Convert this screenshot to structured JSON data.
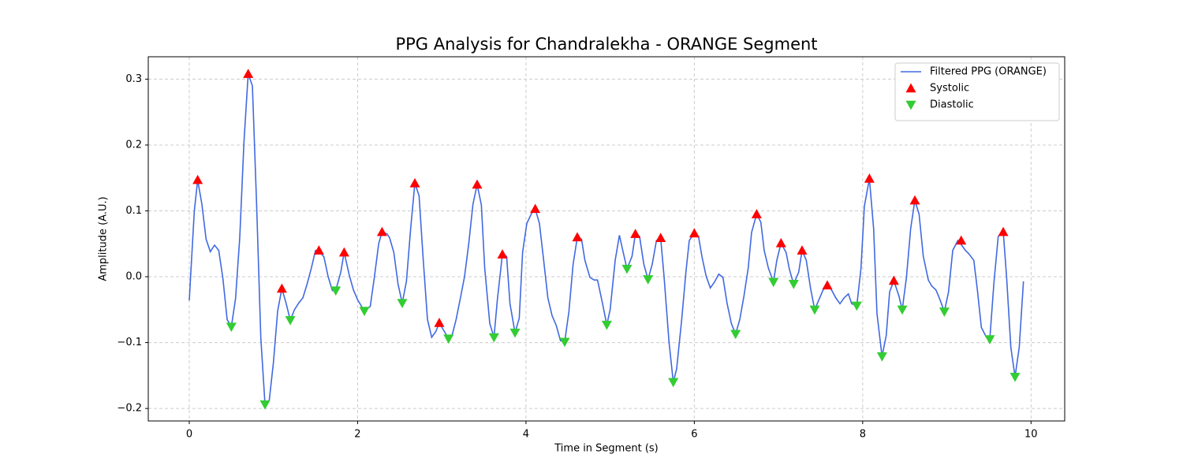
{
  "chart_data": {
    "type": "line",
    "title": "PPG Analysis for Chandralekha - ORANGE Segment",
    "x_label": "Time in Segment (s)",
    "y_label": "Amplitude (A.U.)",
    "xlim": [
      -0.487,
      10.4
    ],
    "ylim": [
      -0.219,
      0.334
    ],
    "xticks": [
      0,
      2,
      4,
      6,
      8,
      10
    ],
    "yticks": [
      {
        "value": -0.2,
        "label": "−0.2"
      },
      {
        "value": -0.1,
        "label": "−0.1"
      },
      {
        "value": 0,
        "label": "0.0"
      },
      0.1,
      0.2,
      0.3
    ],
    "grid": true,
    "legend": "upper right",
    "series": [
      {
        "name": "Filtered PPG (ORANGE)",
        "kind": "line",
        "color": "#4169e1",
        "x": [
          0,
          0.06,
          0.1,
          0.15,
          0.2,
          0.25,
          0.3,
          0.35,
          0.4,
          0.45,
          0.5,
          0.55,
          0.6,
          0.65,
          0.7,
          0.75,
          0.8,
          0.85,
          0.9,
          0.95,
          1.0,
          1.05,
          1.1,
          1.15,
          1.2,
          1.25,
          1.3,
          1.35,
          1.4,
          1.45,
          1.5,
          1.54,
          1.6,
          1.65,
          1.7,
          1.74,
          1.8,
          1.84,
          1.9,
          1.95,
          2.0,
          2.08,
          2.15,
          2.2,
          2.25,
          2.29,
          2.35,
          2.38,
          2.43,
          2.48,
          2.53,
          2.58,
          2.63,
          2.68,
          2.73,
          2.78,
          2.83,
          2.88,
          2.93,
          2.97,
          3.03,
          3.08,
          3.12,
          3.17,
          3.22,
          3.27,
          3.32,
          3.37,
          3.42,
          3.47,
          3.51,
          3.57,
          3.62,
          3.66,
          3.72,
          3.77,
          3.81,
          3.87,
          3.92,
          3.96,
          4.01,
          4.07,
          4.11,
          4.16,
          4.21,
          4.26,
          4.31,
          4.36,
          4.41,
          4.46,
          4.51,
          4.56,
          4.61,
          4.66,
          4.7,
          4.76,
          4.81,
          4.85,
          4.91,
          4.96,
          5.0,
          5.06,
          5.11,
          5.15,
          5.2,
          5.26,
          5.3,
          5.35,
          5.4,
          5.45,
          5.5,
          5.55,
          5.6,
          5.64,
          5.7,
          5.75,
          5.79,
          5.85,
          5.9,
          5.94,
          6.0,
          6.05,
          6.09,
          6.14,
          6.19,
          6.24,
          6.29,
          6.34,
          6.39,
          6.44,
          6.49,
          6.54,
          6.59,
          6.64,
          6.68,
          6.74,
          6.79,
          6.83,
          6.88,
          6.94,
          6.98,
          7.03,
          7.09,
          7.13,
          7.18,
          7.24,
          7.28,
          7.33,
          7.38,
          7.43,
          7.48,
          7.53,
          7.58,
          7.63,
          7.68,
          7.73,
          7.78,
          7.83,
          7.87,
          7.93,
          7.98,
          8.02,
          8.08,
          8.13,
          8.17,
          8.23,
          8.28,
          8.32,
          8.37,
          8.43,
          8.47,
          8.52,
          8.57,
          8.62,
          8.67,
          8.72,
          8.78,
          8.82,
          8.87,
          8.91,
          8.97,
          9.02,
          9.07,
          9.13,
          9.17,
          9.22,
          9.26,
          9.32,
          9.36,
          9.41,
          9.47,
          9.51,
          9.56,
          9.61,
          9.67,
          9.71,
          9.76,
          9.81,
          9.86,
          9.91
        ],
        "values": [
          -0.036,
          0.1,
          0.147,
          0.11,
          0.057,
          0.038,
          0.048,
          0.04,
          -0.003,
          -0.065,
          -0.076,
          -0.033,
          0.06,
          0.205,
          0.308,
          0.29,
          0.11,
          -0.093,
          -0.194,
          -0.188,
          -0.13,
          -0.052,
          -0.018,
          -0.04,
          -0.066,
          -0.05,
          -0.04,
          -0.032,
          -0.011,
          0.013,
          0.04,
          0.04,
          0.03,
          0.0,
          -0.021,
          -0.021,
          0.007,
          0.037,
          0.003,
          -0.02,
          -0.035,
          -0.052,
          -0.045,
          0.0,
          0.05,
          0.068,
          0.065,
          0.059,
          0.037,
          -0.011,
          -0.04,
          -0.007,
          0.073,
          0.142,
          0.123,
          0.025,
          -0.065,
          -0.092,
          -0.083,
          -0.07,
          -0.083,
          -0.094,
          -0.09,
          -0.065,
          -0.033,
          0.0,
          0.05,
          0.11,
          0.14,
          0.109,
          0.013,
          -0.071,
          -0.092,
          -0.035,
          0.034,
          0.031,
          -0.041,
          -0.085,
          -0.063,
          0.037,
          0.081,
          0.097,
          0.103,
          0.081,
          0.025,
          -0.032,
          -0.059,
          -0.074,
          -0.097,
          -0.099,
          -0.053,
          0.019,
          0.06,
          0.057,
          0.025,
          -0.001,
          -0.005,
          -0.005,
          -0.041,
          -0.073,
          -0.05,
          0.025,
          0.063,
          0.04,
          0.012,
          0.031,
          0.065,
          0.061,
          0.019,
          -0.004,
          0.019,
          0.055,
          0.059,
          0.001,
          -0.1,
          -0.16,
          -0.14,
          -0.065,
          0.007,
          0.055,
          0.066,
          0.061,
          0.031,
          0.001,
          -0.017,
          -0.008,
          0.004,
          -0.001,
          -0.041,
          -0.071,
          -0.087,
          -0.065,
          -0.029,
          0.013,
          0.067,
          0.095,
          0.083,
          0.04,
          0.013,
          -0.008,
          0.025,
          0.051,
          0.037,
          0.011,
          -0.011,
          0.007,
          0.04,
          0.025,
          -0.017,
          -0.05,
          -0.035,
          -0.02,
          -0.013,
          -0.02,
          -0.032,
          -0.041,
          -0.032,
          -0.026,
          -0.041,
          -0.044,
          0.013,
          0.107,
          0.149,
          0.073,
          -0.056,
          -0.121,
          -0.089,
          -0.023,
          -0.006,
          -0.029,
          -0.05,
          -0.001,
          0.073,
          0.116,
          0.095,
          0.031,
          -0.005,
          -0.014,
          -0.02,
          -0.032,
          -0.053,
          -0.023,
          0.04,
          0.055,
          0.049,
          0.04,
          0.035,
          0.025,
          -0.017,
          -0.077,
          -0.092,
          -0.095,
          -0.008,
          0.061,
          0.068,
          -0.001,
          -0.107,
          -0.152,
          -0.107,
          -0.007
        ]
      },
      {
        "name": "Systolic",
        "kind": "scatter",
        "marker": "triangle-up",
        "color": "#ff0000",
        "x": [
          0.1,
          0.7,
          1.1,
          1.54,
          1.84,
          2.29,
          2.68,
          2.97,
          3.42,
          3.72,
          4.11,
          4.61,
          5.3,
          5.6,
          6.0,
          6.74,
          7.03,
          7.28,
          7.58,
          8.08,
          8.37,
          8.62,
          9.17,
          9.67
        ],
        "values": [
          0.147,
          0.308,
          -0.018,
          0.04,
          0.037,
          0.068,
          0.142,
          -0.07,
          0.14,
          0.034,
          0.103,
          0.06,
          0.065,
          0.059,
          0.066,
          0.095,
          0.051,
          0.04,
          -0.013,
          0.149,
          -0.006,
          0.116,
          0.055,
          0.068
        ]
      },
      {
        "name": "Diastolic",
        "kind": "scatter",
        "marker": "triangle-down",
        "color": "#32cd32",
        "x": [
          0.5,
          0.9,
          1.2,
          1.74,
          2.08,
          2.53,
          3.08,
          3.62,
          3.87,
          4.46,
          4.96,
          5.2,
          5.45,
          5.75,
          6.49,
          6.94,
          7.18,
          7.43,
          7.93,
          8.23,
          8.47,
          8.97,
          9.51,
          9.81
        ],
        "values": [
          -0.076,
          -0.194,
          -0.066,
          -0.021,
          -0.052,
          -0.04,
          -0.094,
          -0.092,
          -0.085,
          -0.099,
          -0.073,
          0.012,
          -0.004,
          -0.16,
          -0.087,
          -0.008,
          -0.011,
          -0.05,
          -0.044,
          -0.121,
          -0.05,
          -0.053,
          -0.095,
          -0.152
        ]
      }
    ]
  }
}
